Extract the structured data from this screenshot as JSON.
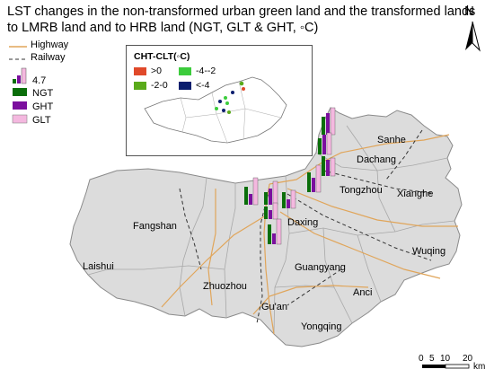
{
  "title": {
    "line1": "LST changes in the non-transformed urban green land and the transformed lands",
    "line2": "to LMRB land and to HRB land (NGT, GLT & GHT, ◦C)"
  },
  "legend": {
    "highway": "Highway",
    "railway": "Railway",
    "bar_value": "4.7",
    "ngt": "NGT",
    "ght": "GHT",
    "glt": "GLT"
  },
  "colors": {
    "ngt": "#0a6e0a",
    "ght": "#7b0f9e",
    "glt": "#f4b8df",
    "highway": "#e0a55a",
    "railway": "#333333",
    "land": "#dcdcdc",
    "pos": "#e0492a",
    "m20": "#5aaa1a",
    "m42": "#3ccc3c",
    "lt4": "#0a1e6e"
  },
  "inset": {
    "title": "CHT-CLT(◦C)",
    "classes": [
      ">0",
      "-4--2",
      "-2-0",
      "<-4"
    ]
  },
  "places": [
    "Sanhe",
    "Dachang",
    "Tongzhou",
    "Xianghe",
    "Fangshan",
    "Daxing",
    "Wuqing",
    "Laishui",
    "Guangyang",
    "Zhuozhou",
    "Anci",
    "Gu'an",
    "Yongqing"
  ],
  "north": "N",
  "scale": {
    "ticks": [
      "0",
      "5",
      "10",
      "20"
    ],
    "unit": "km"
  }
}
